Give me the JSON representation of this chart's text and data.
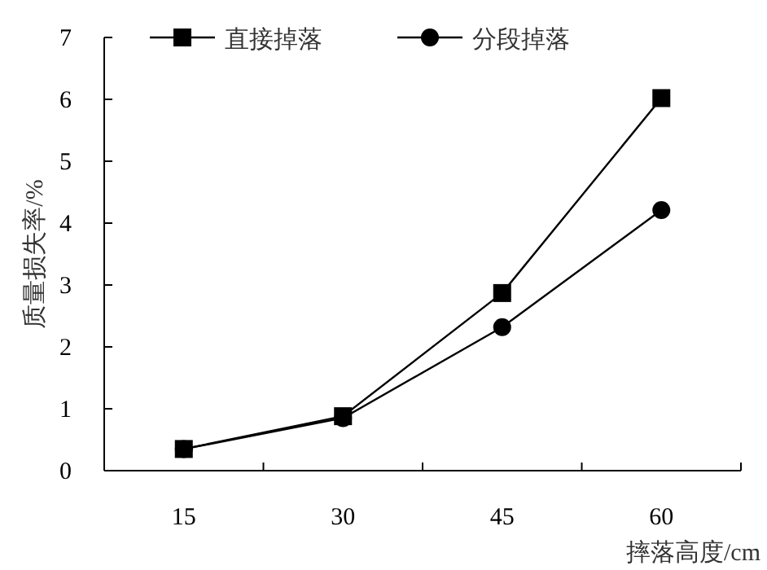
{
  "chart_data": {
    "type": "line",
    "xlabel": "摔落高度/cm",
    "ylabel": "质量损失率/%",
    "categories": [
      "15",
      "30",
      "45",
      "60"
    ],
    "series": [
      {
        "name": "直接掉落",
        "color": "#000000",
        "marker": "square",
        "values": [
          0.35,
          0.88,
          2.87,
          6.02
        ]
      },
      {
        "name": "分段掉落",
        "color": "#000000",
        "marker": "circle",
        "values": [
          0.35,
          0.85,
          2.32,
          4.21
        ]
      }
    ],
    "ylim": [
      0,
      7
    ],
    "yticks": [
      0,
      1,
      2,
      3,
      4,
      5,
      6,
      7
    ],
    "grid": false,
    "legend": "top left",
    "line_style": "solid"
  }
}
